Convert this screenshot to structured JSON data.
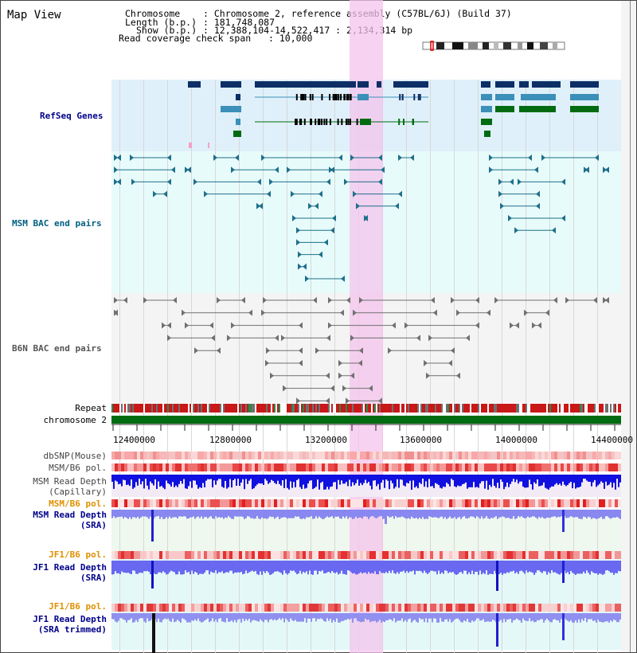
{
  "view_title": "Map View",
  "header": {
    "chromosome_key": "Chromosome",
    "chromosome_val": ": Chromosome 2, reference assembly (C57BL/6J) (Build 37)",
    "length_key": "Length (b.p.)",
    "length_val": ": 181,748,087",
    "show_key": "Show (b.p.)",
    "show_val": ": 12,388,104-14,522,417 : 2,134,314 bp",
    "coverage_key": "Read coverage check span",
    "coverage_val": ": 10,000"
  },
  "tracks": {
    "refseq": "RefSeq Genes",
    "msm_bac": "MSM BAC end pairs",
    "b6n_bac": "B6N BAC end pairs",
    "repeat": "Repeat",
    "chromosome": "chromosome 2",
    "dbsnp": "dbSNP(Mouse)",
    "msm_b6_pol_1": "MSM/B6 pol.",
    "msm_depth_cap_1": "MSM Read Depth",
    "msm_depth_cap_2": "(Capillary)",
    "msm_b6_pol_2": "MSM/B6 pol.",
    "msm_depth_sra_1": "MSM Read Depth",
    "msm_depth_sra_2": "(SRA)",
    "jf1_b6_pol_1": "JF1/B6 pol.",
    "jf1_depth_sra_1": "JF1 Read Depth",
    "jf1_depth_sra_2": "(SRA)",
    "jf1_b6_pol_2": "JF1/B6 pol.",
    "jf1_trim_1": "JF1 Read Depth",
    "jf1_trim_2": "(SRA trimmed)"
  },
  "axis": {
    "ticks": [
      "12400000",
      "12800000",
      "13200000",
      "13600000",
      "14000000",
      "14400000"
    ]
  },
  "colors": {
    "refseq_bg": "#dff0fa",
    "msm_bg": "#e7fbfb",
    "b6n_bg": "#f4f4f4",
    "gene_dark": "#0d2f66",
    "gene_mid": "#3b8fb8",
    "gene_green": "#006b10",
    "msm_line": "#1f6f8a",
    "b6n_line": "#707070",
    "highlight": "#f4c4ec",
    "label_blue": "#00008b",
    "label_orange": "#e09000",
    "label_cyan": "#006080"
  }
}
